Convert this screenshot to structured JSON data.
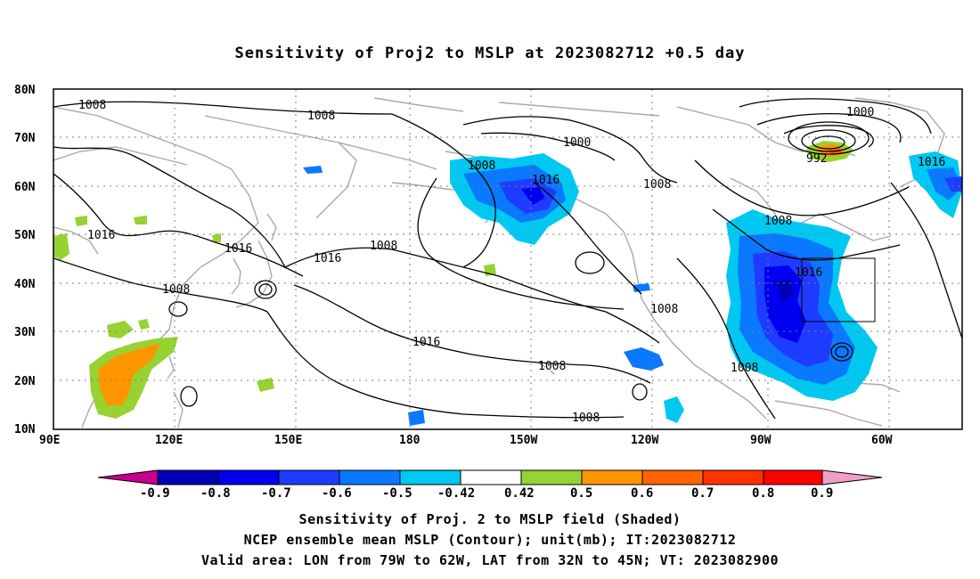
{
  "title": "Sensitivity of Proj2 to MSLP at 2023082712 +0.5 day",
  "map": {
    "lat_labels": [
      "80N",
      "70N",
      "60N",
      "50N",
      "40N",
      "30N",
      "20N",
      "10N"
    ],
    "lon_labels": [
      "90E",
      "120E",
      "150E",
      "180",
      "150W",
      "120W",
      "90W",
      "60W"
    ],
    "contour_labels": [
      "1008",
      "1008",
      "1000",
      "1000",
      "992",
      "1008",
      "1016",
      "1008",
      "1016",
      "1016",
      "1008",
      "1016",
      "1008",
      "1016",
      "1016",
      "1008",
      "1008",
      "1008",
      "1016",
      "1008",
      "1008"
    ],
    "colors": {
      "coast": "#a9a9a9",
      "contour": "#000000",
      "grid": "#7f7f7f"
    }
  },
  "colorbar": {
    "labels": [
      "-0.9",
      "-0.8",
      "-0.7",
      "-0.6",
      "-0.5",
      "-0.42",
      "0.42",
      "0.5",
      "0.6",
      "0.7",
      "0.8",
      "0.9"
    ],
    "colors": [
      "#c8008c",
      "#0000b4",
      "#0000f0",
      "#1e3cff",
      "#0a78ff",
      "#00c8f0",
      "#ffffff",
      "#96d232",
      "#ff9600",
      "#ff6400",
      "#ff3200",
      "#ff0000",
      "#f0a0c8"
    ]
  },
  "captions": {
    "line1": "Sensitivity of Proj. 2 to MSLP field (Shaded)",
    "line2": "NCEP ensemble mean MSLP (Contour); unit(mb); IT:2023082712",
    "line3": "Valid area: LON from 79W to 62W, LAT from 32N to 45N; VT: 2023082900"
  }
}
